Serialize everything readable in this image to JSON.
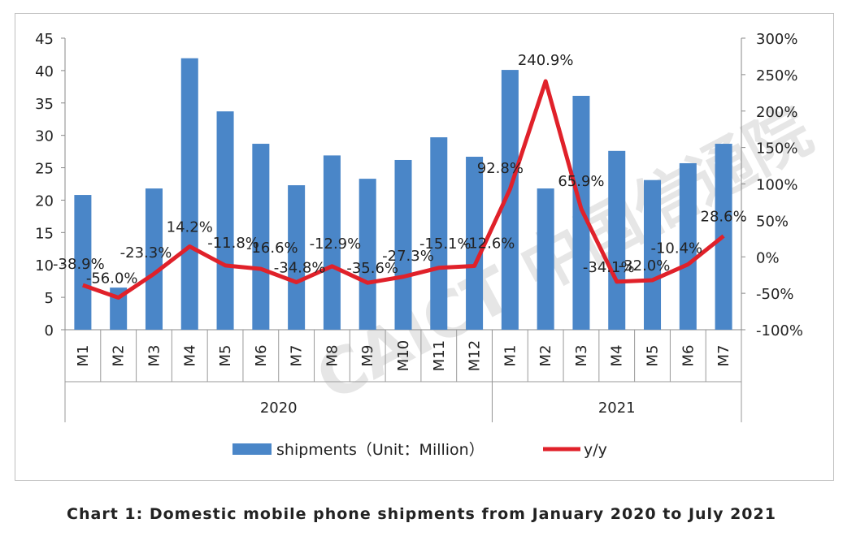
{
  "chart_data": {
    "type": "bar+line",
    "title": "Chart 1: Domestic mobile phone shipments from January 2020 to July 2021",
    "categories": [
      "M1",
      "M2",
      "M3",
      "M4",
      "M5",
      "M6",
      "M7",
      "M8",
      "M9",
      "M10",
      "M11",
      "M12",
      "M1",
      "M2",
      "M3",
      "M4",
      "M5",
      "M6",
      "M7"
    ],
    "groups": [
      {
        "label": "2020",
        "count": 12
      },
      {
        "label": "2021",
        "count": 7
      }
    ],
    "series": [
      {
        "name": "shipments（Unit：Million）",
        "type": "bar",
        "axis": "left",
        "color": "#4a86c8",
        "values": [
          20.8,
          6.5,
          21.8,
          41.9,
          33.7,
          28.7,
          22.3,
          26.9,
          23.3,
          26.2,
          29.7,
          26.7,
          40.1,
          21.8,
          36.1,
          27.6,
          23.1,
          25.7,
          28.7
        ]
      },
      {
        "name": "y/y",
        "type": "line",
        "axis": "right",
        "color": "#e0212a",
        "values": [
          -38.9,
          -56.0,
          -23.3,
          14.2,
          -11.8,
          -16.6,
          -34.8,
          -12.9,
          -35.6,
          -27.3,
          -15.1,
          -12.6,
          92.8,
          240.9,
          65.9,
          -34.1,
          -32.0,
          -10.4,
          28.6
        ],
        "labels": [
          "-38.9%",
          "-56.0%",
          "-23.3%",
          "14.2%",
          "-11.8%",
          "-16.6%",
          "-34.8%",
          "-12.9%",
          "-35.6%",
          "-27.3%",
          "-15.1%",
          "-12.6%",
          "92.8%",
          "240.9%",
          "65.9%",
          "-34.1%",
          "-32.0%",
          "-10.4%",
          "28.6%"
        ]
      }
    ],
    "left_axis": {
      "ylim": [
        0,
        45
      ],
      "ticks": [
        "0",
        "5",
        "10",
        "15",
        "20",
        "25",
        "30",
        "35",
        "40",
        "45"
      ]
    },
    "right_axis": {
      "ylim": [
        -100,
        300
      ],
      "ticks": [
        "-100%",
        "-50%",
        "0%",
        "50%",
        "100%",
        "150%",
        "200%",
        "250%",
        "300%"
      ]
    },
    "legend": "bottom",
    "grid": false,
    "watermark": "CAICT 中国信通院"
  }
}
